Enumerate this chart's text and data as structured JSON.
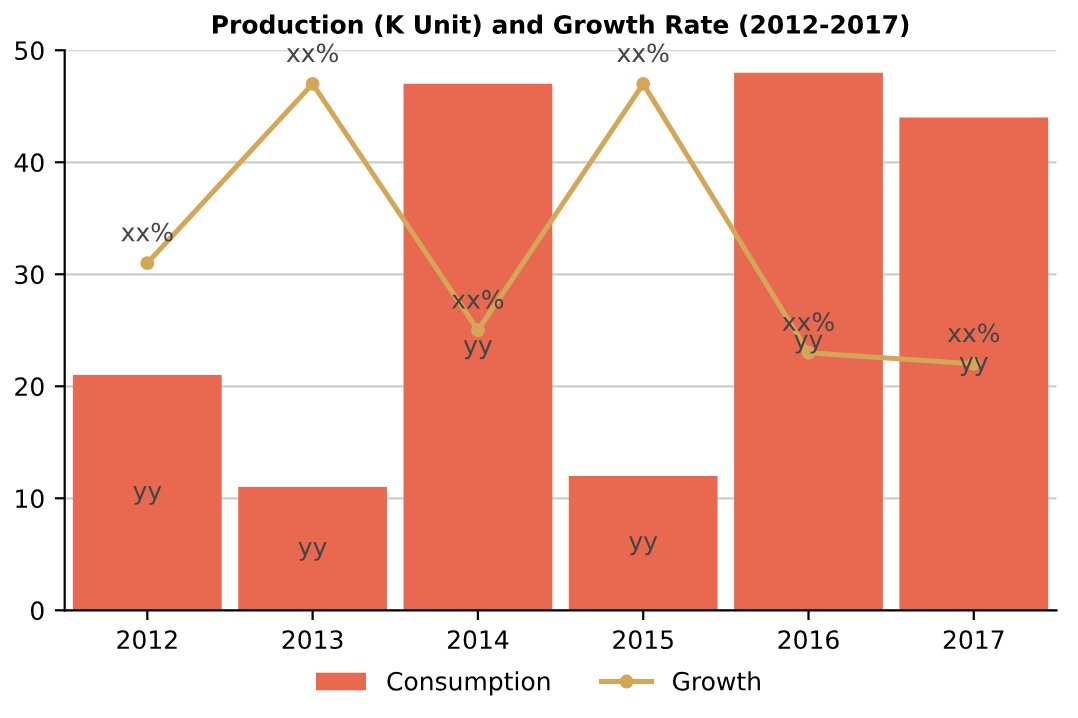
{
  "chart_data": {
    "type": "bar",
    "title": "Production (K Unit) and Growth Rate (2012-2017)",
    "categories": [
      "2012",
      "2013",
      "2014",
      "2015",
      "2016",
      "2017"
    ],
    "series": [
      {
        "name": "Consumption",
        "color": "#e8694f",
        "values": [
          21,
          11,
          47,
          12,
          48,
          44
        ],
        "value_labels": [
          "yy",
          "yy",
          "yy",
          "yy",
          "yy",
          "yy"
        ]
      },
      {
        "name": "Growth",
        "type": "line",
        "color": "#d4a657",
        "values": [
          31,
          47,
          25,
          47,
          23,
          22
        ],
        "value_labels": [
          "xx%",
          "xx%",
          "xx%",
          "xx%",
          "xx%",
          "xx%"
        ],
        "marker": "circle"
      }
    ],
    "ylim": [
      0,
      50
    ],
    "yticks": [
      0,
      10,
      20,
      30,
      40,
      50
    ],
    "grid": "y",
    "legend": "bottom"
  }
}
